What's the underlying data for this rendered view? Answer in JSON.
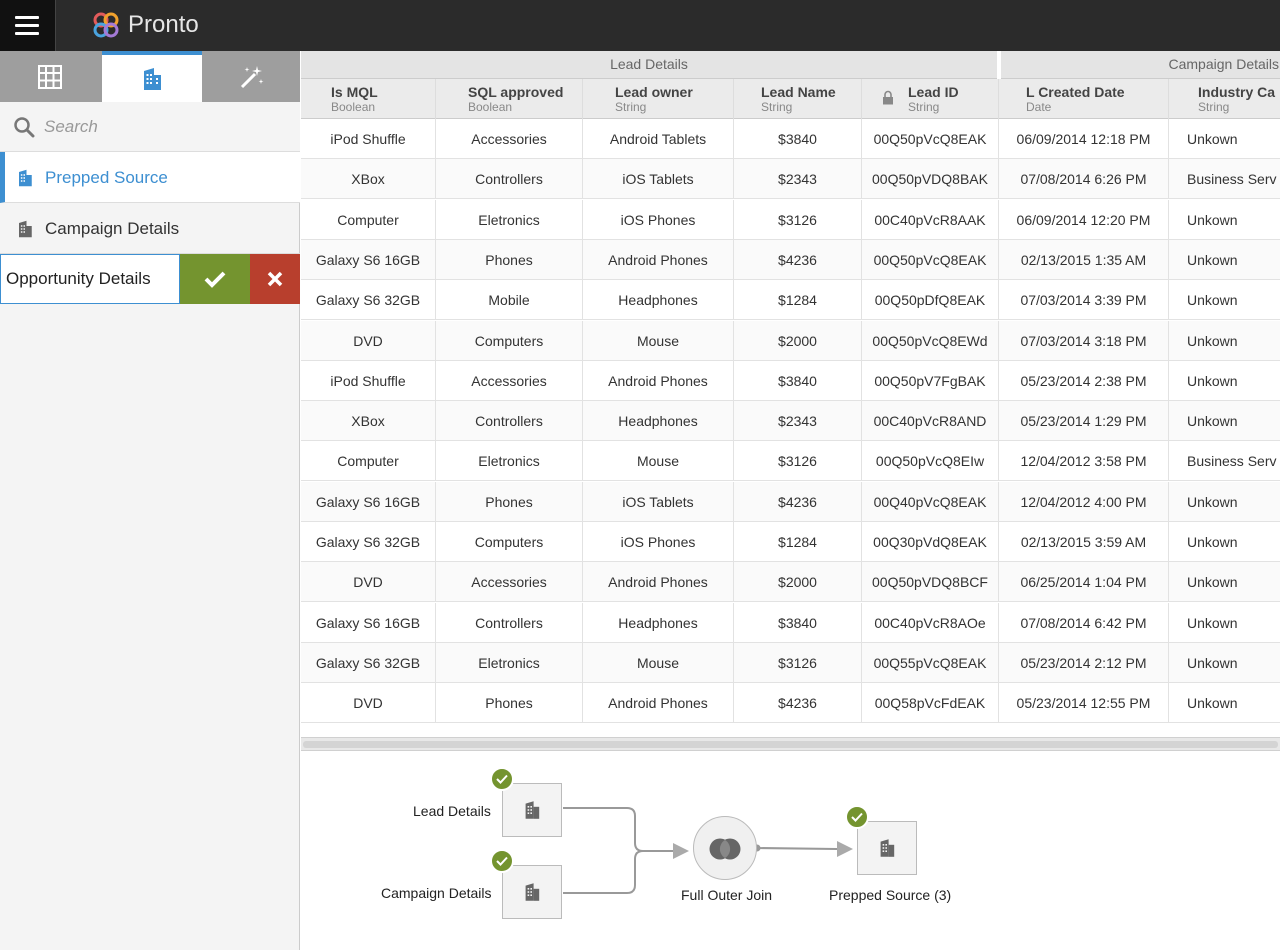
{
  "app": {
    "title": "Pronto"
  },
  "sidebar": {
    "search_placeholder": "Search",
    "sources": [
      {
        "label": "Prepped Source"
      },
      {
        "label": "Campaign Details"
      }
    ],
    "rename_value": "Opportunity Details"
  },
  "grid": {
    "groups": [
      {
        "label": "Lead Details"
      },
      {
        "label": "Campaign Details"
      }
    ],
    "columns": [
      {
        "name": "Is MQL",
        "type": "Boolean"
      },
      {
        "name": "SQL approved",
        "type": "Boolean"
      },
      {
        "name": "Lead owner",
        "type": "String"
      },
      {
        "name": "Lead Name",
        "type": "String"
      },
      {
        "name": "Lead ID",
        "type": "String"
      },
      {
        "name": "L Created Date",
        "type": "Date"
      },
      {
        "name": "Industry Ca",
        "type": "String"
      }
    ],
    "rows": [
      [
        "iPod Shuffle",
        "Accessories",
        "Android Tablets",
        "$3840",
        "00Q50pVcQ8EAK",
        "06/09/2014 12:18 PM",
        "Unkown"
      ],
      [
        "XBox",
        "Controllers",
        "iOS Tablets",
        "$2343",
        "00Q50pVDQ8BAK",
        "07/08/2014 6:26 PM",
        "Business Serv"
      ],
      [
        "Computer",
        "Eletronics",
        "iOS Phones",
        "$3126",
        "00C40pVcR8AAK",
        "06/09/2014 12:20 PM",
        "Unkown"
      ],
      [
        "Galaxy S6 16GB",
        "Phones",
        "Android Phones",
        "$4236",
        "00Q50pVcQ8EAK",
        "02/13/2015 1:35 AM",
        "Unkown"
      ],
      [
        "Galaxy S6 32GB",
        "Mobile",
        "Headphones",
        "$1284",
        "00Q50pDfQ8EAK",
        "07/03/2014 3:39 PM",
        "Unkown"
      ],
      [
        "DVD",
        "Computers",
        "Mouse",
        "$2000",
        "00Q50pVcQ8EWd",
        "07/03/2014 3:18 PM",
        "Unkown"
      ],
      [
        "iPod Shuffle",
        "Accessories",
        "Android Phones",
        "$3840",
        "00Q50pV7FgBAK",
        "05/23/2014 2:38 PM",
        "Unkown"
      ],
      [
        "XBox",
        "Controllers",
        "Headphones",
        "$2343",
        "00C40pVcR8AND",
        "05/23/2014 1:29 PM",
        "Unkown"
      ],
      [
        "Computer",
        "Eletronics",
        "Mouse",
        "$3126",
        "00Q50pVcQ8EIw",
        "12/04/2012 3:58 PM",
        "Business Serv"
      ],
      [
        "Galaxy S6 16GB",
        "Phones",
        "iOS Tablets",
        "$4236",
        "00Q40pVcQ8EAK",
        "12/04/2012 4:00 PM",
        "Unkown"
      ],
      [
        "Galaxy S6 32GB",
        "Computers",
        "iOS Phones",
        "$1284",
        "00Q30pVdQ8EAK",
        "02/13/2015 3:59 AM",
        "Unkown"
      ],
      [
        "DVD",
        "Accessories",
        "Android Phones",
        "$2000",
        "00Q50pVDQ8BCF",
        "06/25/2014 1:04 PM",
        "Unkown"
      ],
      [
        "Galaxy S6 16GB",
        "Controllers",
        "Headphones",
        "$3840",
        "00C40pVcR8AOe",
        "07/08/2014 6:42 PM",
        "Unkown"
      ],
      [
        "Galaxy S6 32GB",
        "Eletronics",
        "Mouse",
        "$3126",
        "00Q55pVcQ8EAK",
        "05/23/2014 2:12 PM",
        "Unkown"
      ],
      [
        "DVD",
        "Phones",
        "Android Phones",
        "$4236",
        "00Q58pVcFdEAK",
        "05/23/2014 12:55 PM",
        "Unkown"
      ]
    ]
  },
  "flow": {
    "inputs": [
      {
        "label": "Lead Details"
      },
      {
        "label": "Campaign Details"
      }
    ],
    "join_label": "Full Outer Join",
    "output_label": "Prepped Source (3)"
  },
  "colors": {
    "accent": "#3d8fd1",
    "confirm": "#74942f",
    "cancel": "#b83f2d",
    "topbar": "#2b2b2b"
  }
}
